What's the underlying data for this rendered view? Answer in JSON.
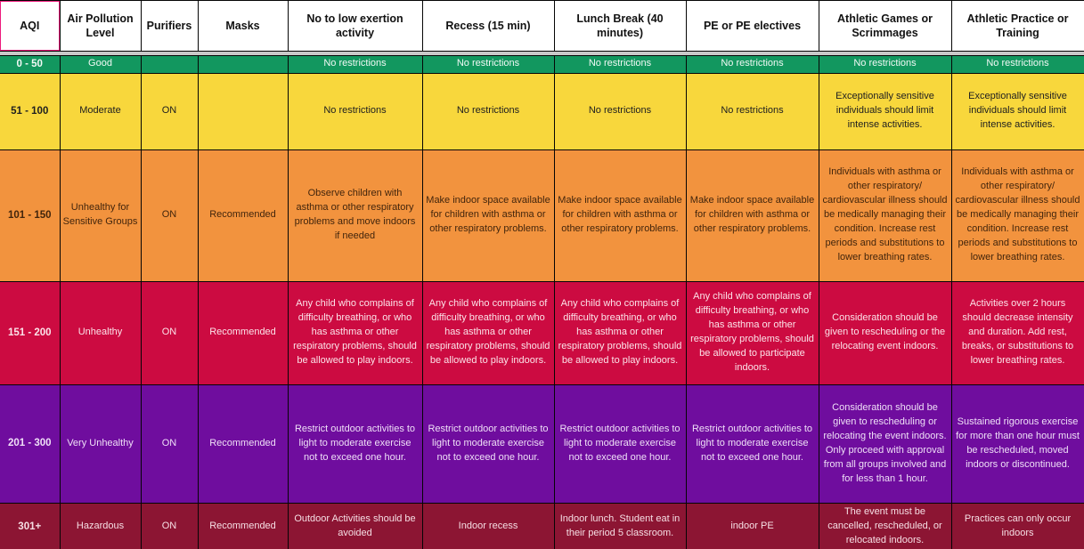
{
  "colors": {
    "selection_border": "#EC1A7C",
    "header_separator": "#C9C9C9",
    "grid_border": "#050505",
    "header_background": "#FFFFFF"
  },
  "table": {
    "header": {
      "selected_column": "AQI",
      "columns": [
        "AQI",
        "Air Pollution Level",
        "Purifiers",
        "Masks",
        "No to low exertion activity",
        "Recess (15 min)",
        "Lunch Break (40 minutes)",
        "PE or PE electives",
        "Athletic Games or Scrimmages",
        "Athletic Practice or Training"
      ]
    },
    "rows": [
      {
        "name": "good",
        "bg": "#12975F",
        "fg": "#F2FAF6",
        "cells": [
          "0 - 50",
          "Good",
          "",
          "",
          "No restrictions",
          "No restrictions",
          "No restrictions",
          "No restrictions",
          "No restrictions",
          "No restrictions"
        ]
      },
      {
        "name": "moderate",
        "bg": "#F8D73C",
        "fg": "#202020",
        "cells": [
          "51 - 100",
          "Moderate",
          "ON",
          "",
          "No restrictions",
          "No restrictions",
          "No restrictions",
          "No restrictions",
          "Exceptionally sensitive individuals should limit intense activities.",
          "Exceptionally sensitive individuals should limit intense activities."
        ]
      },
      {
        "name": "unhealthy-for-sensitive-groups",
        "bg": "#F2933E",
        "fg": "#42250C",
        "cells": [
          "101 - 150",
          "Unhealthy for Sensitive Groups",
          "ON",
          "Recommended",
          "Observe children with asthma or other respiratory problems and move indoors if needed",
          "Make indoor space available for children with asthma or other respiratory problems.",
          "Make indoor space available for children with asthma or other respiratory problems.",
          "Make indoor space available for children with asthma or other respiratory problems.",
          "Individuals with asthma or other respiratory/ cardiovascular illness should be medically managing their condition. Increase rest periods and substitutions to lower breathing rates.",
          "Individuals with asthma or other respiratory/ cardiovascular illness should be medically managing their condition. Increase rest periods and substitutions to lower breathing rates."
        ]
      },
      {
        "name": "unhealthy",
        "bg": "#CC0B41",
        "fg": "#FCE3E9",
        "cells": [
          "151 - 200",
          "Unhealthy",
          "ON",
          "Recommended",
          "Any child who complains of difficulty breathing, or who has asthma or other respiratory problems, should be allowed to play indoors.",
          "Any child who complains of difficulty breathing, or who has asthma or other respiratory problems, should be allowed to play indoors.",
          "Any child who complains of difficulty breathing, or who has asthma or other respiratory problems, should be allowed to play indoors.",
          "Any child who complains of difficulty breathing, or who has asthma or other respiratory problems, should be allowed to participate indoors.",
          "Consideration should be given to rescheduling or the relocating event indoors.",
          "Activities over 2 hours should decrease intensity and duration. Add rest, breaks, or substitutions to lower breathing rates."
        ]
      },
      {
        "name": "very-unhealthy",
        "bg": "#6F0D9E",
        "fg": "#EFDFF7",
        "cells": [
          "201 - 300",
          "Very Unhealthy",
          "ON",
          "Recommended",
          "Restrict outdoor activities to light to moderate exercise not to exceed one hour.",
          "Restrict outdoor activities to light to moderate exercise not to exceed one hour.",
          "Restrict outdoor activities to light to moderate exercise not to exceed one hour.",
          "Restrict outdoor activities to light to moderate exercise not to exceed one hour.",
          "Consideration should be given to rescheduling or relocating the event indoors. Only proceed with approval from all groups involved and for less than 1 hour.",
          "Sustained rigorous exercise for more than one hour must be rescheduled, moved indoors or discontinued."
        ]
      },
      {
        "name": "hazardous",
        "bg": "#8C1533",
        "fg": "#F6DEE4",
        "cells": [
          "301+",
          "Hazardous",
          "ON",
          "Recommended",
          "Outdoor Activities should be avoided",
          "Indoor recess",
          "Indoor lunch. Student eat in their period 5 classroom.",
          "indoor PE",
          "The event must be cancelled, rescheduled, or relocated indoors.",
          "Practices can only occur indoors"
        ]
      }
    ]
  }
}
